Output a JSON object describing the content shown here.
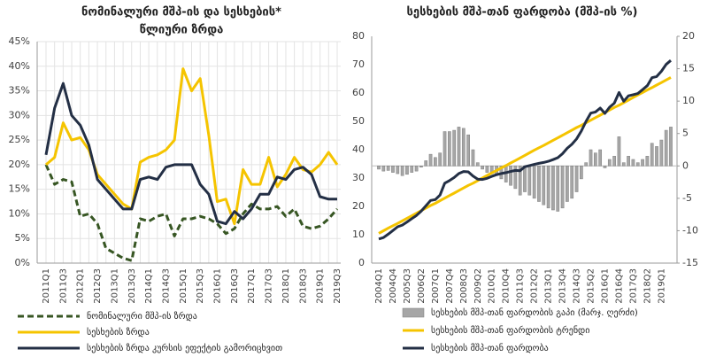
{
  "chart_data": [
    {
      "type": "line",
      "title": [
        "ნომინალური მშპ-ის და სესხების*",
        "წლიური ზრდა"
      ],
      "categories": [
        "2011Q1",
        null,
        "2011Q3",
        null,
        "2012Q1",
        null,
        "2012Q3",
        null,
        "2013Q1",
        null,
        "2013Q3",
        null,
        "2014Q1",
        null,
        "2014Q3",
        null,
        "2015Q1",
        null,
        "2015Q3",
        null,
        "2016Q1",
        null,
        "2016Q3",
        null,
        "2017Q1",
        null,
        "2017Q3",
        null,
        "2018Q1",
        null,
        "2018Q3",
        null,
        "2019Q1",
        null,
        "2019Q3"
      ],
      "ylim": [
        0,
        45
      ],
      "yticks": [
        {
          "value": 0,
          "label": "0%"
        },
        {
          "value": 5,
          "label": "5%"
        },
        {
          "value": 10,
          "label": "10%"
        },
        {
          "value": 15,
          "label": "15%"
        },
        {
          "value": 20,
          "label": "20%"
        },
        {
          "value": 25,
          "label": "25%"
        },
        {
          "value": 30,
          "label": "30%"
        },
        {
          "value": 35,
          "label": "35%"
        },
        {
          "value": 40,
          "label": "40%"
        },
        {
          "value": 45,
          "label": "45%"
        }
      ],
      "grid": true,
      "legend": "bottom",
      "series": [
        {
          "name": "ნომინალური მშპ-ის ზრდა",
          "color": "#375623",
          "dashed": true,
          "values": [
            20,
            16,
            17,
            16.5,
            9.5,
            10,
            8,
            3,
            2,
            1,
            0.5,
            9,
            8.5,
            9.5,
            10,
            5.5,
            9,
            9,
            9.5,
            9,
            8,
            6,
            7,
            10,
            12,
            11,
            11,
            11.5,
            9.5,
            11,
            7.5,
            7,
            7.5,
            9,
            11
          ]
        },
        {
          "name": "სესხების ზრდა",
          "color": "#f5c400",
          "values": [
            20,
            21.5,
            28.5,
            25,
            25.5,
            23,
            18,
            16,
            14,
            12,
            11,
            20.5,
            21.5,
            22,
            23,
            25,
            39.5,
            35,
            37.5,
            26,
            12.5,
            13,
            8,
            19,
            16,
            16,
            21.5,
            15.5,
            18,
            21.5,
            19,
            18.5,
            20,
            22.5,
            20
          ]
        },
        {
          "name": "სესხების ზრდა კურსის ეფექტის გამორიცხვით",
          "color": "#232f45",
          "values": [
            22,
            31.5,
            36.5,
            30,
            28,
            24,
            17,
            15,
            13,
            11,
            11,
            17,
            17.5,
            17,
            19.5,
            20,
            20,
            20,
            16,
            14,
            8.5,
            8,
            10.5,
            9,
            11,
            14,
            14,
            17.5,
            17,
            19,
            19.5,
            18,
            13.5,
            13,
            13
          ]
        }
      ]
    },
    {
      "type": "combo",
      "title": [
        "სესხების მშპ-თან ფარდობა (მშპ-ის %)"
      ],
      "categories": [
        "2004Q1",
        null,
        null,
        "2004Q4",
        null,
        null,
        "2005Q3",
        null,
        null,
        "2006Q2",
        null,
        null,
        "2007Q1",
        null,
        null,
        "2007Q4",
        null,
        null,
        "2008Q3",
        null,
        null,
        "2009Q2",
        null,
        null,
        "2010Q1",
        null,
        null,
        "2010Q4",
        null,
        null,
        "2011Q3",
        null,
        null,
        "2012Q2",
        null,
        null,
        "2013Q1",
        null,
        null,
        "2013Q4",
        null,
        null,
        "2014Q3",
        null,
        null,
        "2015Q2",
        null,
        null,
        "2016Q1",
        null,
        null,
        "2016Q4",
        null,
        null,
        "2017Q3",
        null,
        null,
        "2018Q2",
        null,
        null,
        "2019Q1",
        null,
        null
      ],
      "ylim": [
        0,
        80
      ],
      "yticks": [
        0,
        10,
        20,
        30,
        40,
        50,
        60,
        70,
        80
      ],
      "y2lim": [
        -15,
        20
      ],
      "y2ticks": [
        -15,
        -10,
        -5,
        0,
        5,
        10,
        15,
        20
      ],
      "grid": false,
      "legend": "bottom",
      "series": [
        {
          "name": "სესხების მშპ-თან ფარდობის გაპი (მარჯ. ღერძი)",
          "type": "bar",
          "axis": "y2",
          "color": "#a6a6a6",
          "values": [
            -0.5,
            -0.8,
            -0.7,
            -1.0,
            -1.2,
            -1.5,
            -1.3,
            -1.0,
            -0.8,
            -0.2,
            0.8,
            1.8,
            1.3,
            2.0,
            5.3,
            5.3,
            5.5,
            6.0,
            5.8,
            4.8,
            2.5,
            0.5,
            -0.5,
            -1.0,
            -1.2,
            -1.5,
            -2.0,
            -2.5,
            -3.0,
            -3.5,
            -4.5,
            -4.0,
            -4.5,
            -5.0,
            -5.5,
            -6.0,
            -6.5,
            -6.8,
            -7.0,
            -6.5,
            -5.5,
            -5.0,
            -4.0,
            -2.0,
            0.5,
            2.5,
            2.0,
            2.5,
            -0.3,
            1.0,
            1.5,
            4.5,
            0.5,
            1.5,
            1.0,
            0.5,
            1.0,
            1.5,
            3.5,
            3.0,
            4.0,
            5.5,
            6.0
          ]
        },
        {
          "name": "სესხების მშპ-თან ფარდობის ტრენდი",
          "type": "line",
          "color": "#f5c400",
          "values": [
            10.5,
            11.4,
            12.3,
            13.2,
            14.0,
            14.9,
            15.8,
            16.7,
            17.6,
            18.5,
            19.4,
            20.3,
            21.1,
            22.0,
            22.9,
            23.8,
            24.7,
            25.6,
            26.5,
            27.4,
            28.2,
            29.1,
            30.0,
            30.9,
            31.8,
            32.7,
            33.6,
            34.4,
            35.3,
            36.2,
            37.1,
            38.0,
            38.9,
            39.8,
            40.7,
            41.5,
            42.4,
            43.3,
            44.2,
            45.1,
            46.0,
            46.9,
            47.8,
            48.6,
            49.5,
            50.4,
            51.3,
            52.2,
            53.1,
            54.0,
            54.9,
            55.7,
            56.6,
            57.5,
            58.4,
            59.3,
            60.2,
            61.1,
            61.9,
            62.8,
            63.7,
            64.6,
            65.5
          ]
        },
        {
          "name": "სესხების მშპ-თან ფარდობა",
          "type": "line",
          "color": "#232f45",
          "values": [
            8.5,
            9.0,
            10.2,
            11.5,
            12.8,
            13.4,
            14.5,
            15.7,
            16.8,
            18.3,
            20.2,
            22.1,
            22.4,
            24.0,
            28.2,
            29.1,
            30.2,
            31.6,
            32.3,
            32.2,
            30.7,
            29.6,
            29.5,
            29.9,
            30.6,
            31.2,
            31.6,
            31.9,
            32.3,
            32.7,
            32.6,
            34.0,
            34.4,
            34.8,
            35.2,
            35.5,
            35.9,
            36.5,
            37.2,
            38.6,
            40.5,
            41.9,
            43.8,
            46.6,
            50.0,
            52.9,
            53.3,
            54.7,
            52.8,
            55.0,
            56.4,
            60.2,
            57.1,
            59.0,
            59.4,
            59.8,
            61.2,
            62.6,
            65.4,
            65.8,
            67.7,
            70.1,
            71.5
          ]
        }
      ]
    }
  ]
}
